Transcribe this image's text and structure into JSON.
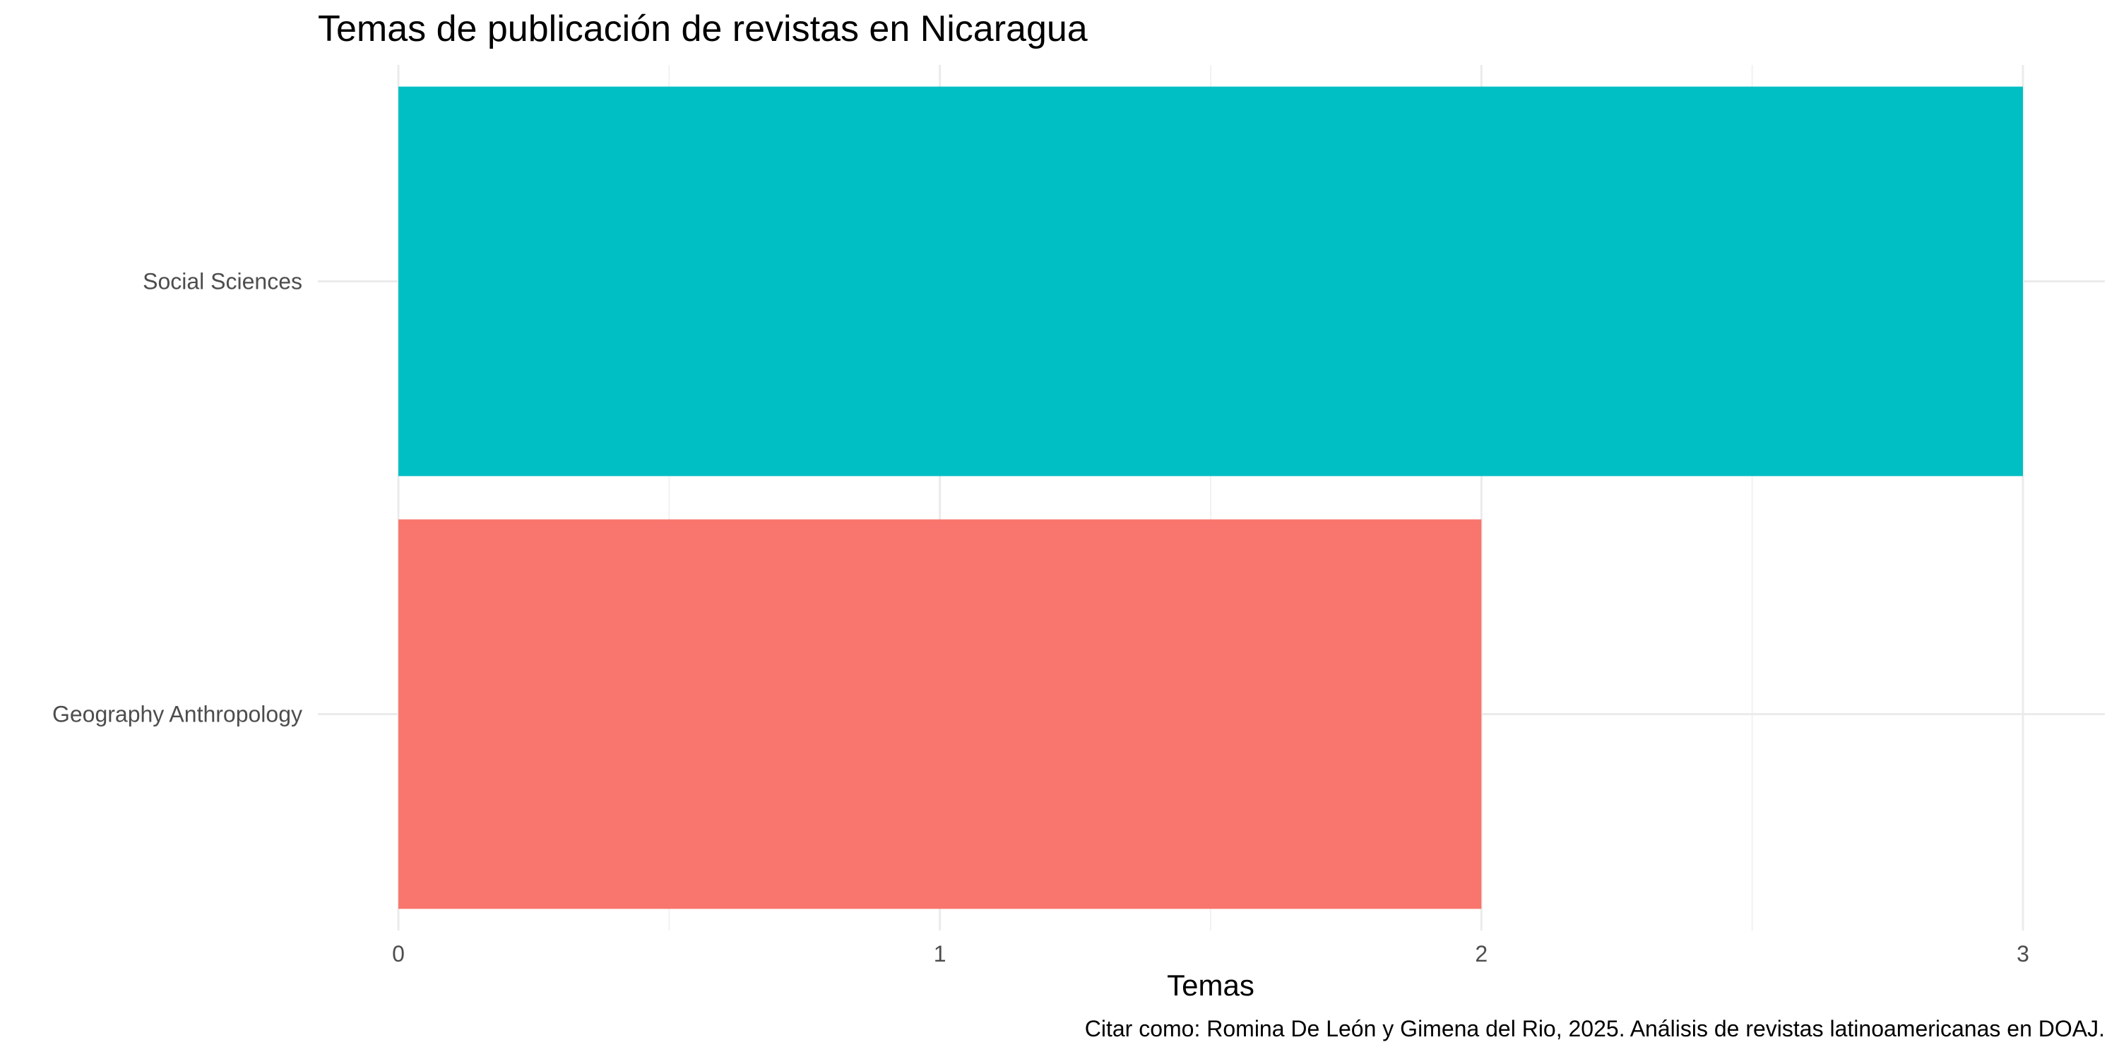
{
  "chart_data": {
    "type": "bar",
    "orientation": "horizontal",
    "title": "Temas de publicación de revistas en Nicaragua",
    "xlabel": "Temas",
    "ylabel": "",
    "caption": "Citar como: Romina De León y Gimena del Rio, 2025. Análisis de revistas latinoamericanas en DOAJ.",
    "categories": [
      "Social Sciences",
      "Geography Anthropology"
    ],
    "values": [
      3,
      2
    ],
    "colors": [
      "#00BFC4",
      "#F8766D"
    ],
    "xlim": [
      0,
      3
    ],
    "xticks": [
      0,
      1,
      2,
      3
    ],
    "grid": true,
    "legend": "none"
  }
}
